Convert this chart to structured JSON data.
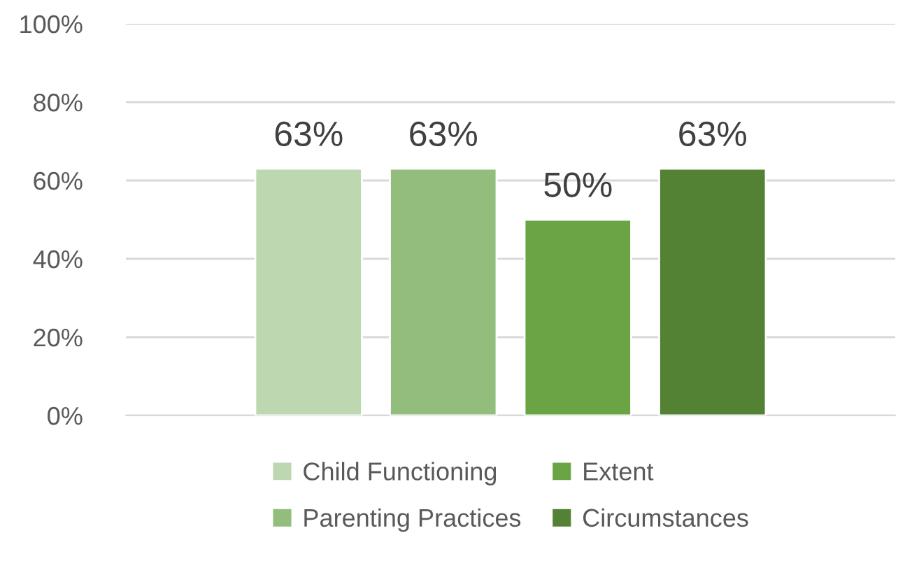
{
  "chart_data": {
    "type": "bar",
    "categories": [
      null
    ],
    "series": [
      {
        "name": "Child Functioning",
        "color": "#bdd7b1",
        "values": [
          63
        ],
        "value_labels": [
          "63%"
        ]
      },
      {
        "name": "Parenting Practices",
        "color": "#92bd7d",
        "values": [
          63
        ],
        "value_labels": [
          "63%"
        ]
      },
      {
        "name": "Extent",
        "color": "#6aa444",
        "values": [
          50
        ],
        "value_labels": [
          "50%"
        ]
      },
      {
        "name": "Circumstances",
        "color": "#548235",
        "values": [
          63
        ],
        "value_labels": [
          "63%"
        ]
      }
    ],
    "ylim": [
      0,
      100
    ],
    "yticks": [
      {
        "value": 0,
        "label": "0%"
      },
      {
        "value": 20,
        "label": "20%"
      },
      {
        "value": 40,
        "label": "40%"
      },
      {
        "value": 60,
        "label": "60%"
      },
      {
        "value": 80,
        "label": "80%"
      },
      {
        "value": 100,
        "label": "100%"
      }
    ],
    "grid": "y",
    "legend": "bottom"
  }
}
